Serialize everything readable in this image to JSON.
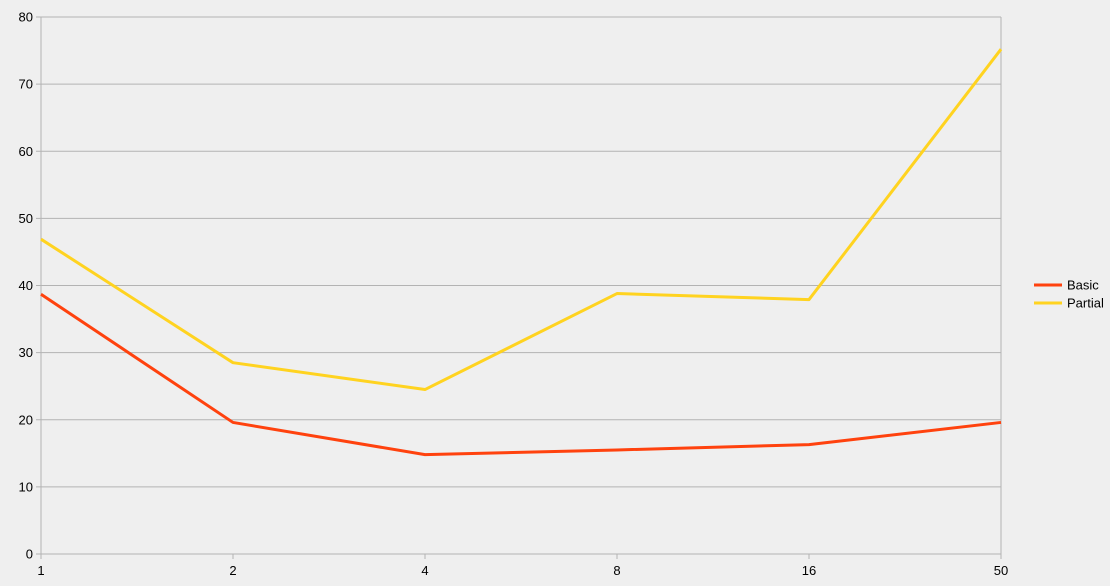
{
  "chart_data": {
    "type": "line",
    "title": "",
    "xlabel": "",
    "ylabel": "",
    "categories": [
      "1",
      "2",
      "4",
      "8",
      "16",
      "50"
    ],
    "ylim": [
      0,
      80
    ],
    "yticks": [
      0,
      10,
      20,
      30,
      40,
      50,
      60,
      70,
      80
    ],
    "grid": true,
    "legend_position": "right",
    "series": [
      {
        "name": "Basic",
        "color": "#ff420e",
        "values": [
          38.7,
          19.6,
          14.8,
          15.5,
          16.3,
          19.6
        ]
      },
      {
        "name": "Partial",
        "color": "#ffd320",
        "values": [
          46.9,
          28.5,
          24.5,
          38.8,
          37.9,
          75.2
        ]
      }
    ]
  }
}
